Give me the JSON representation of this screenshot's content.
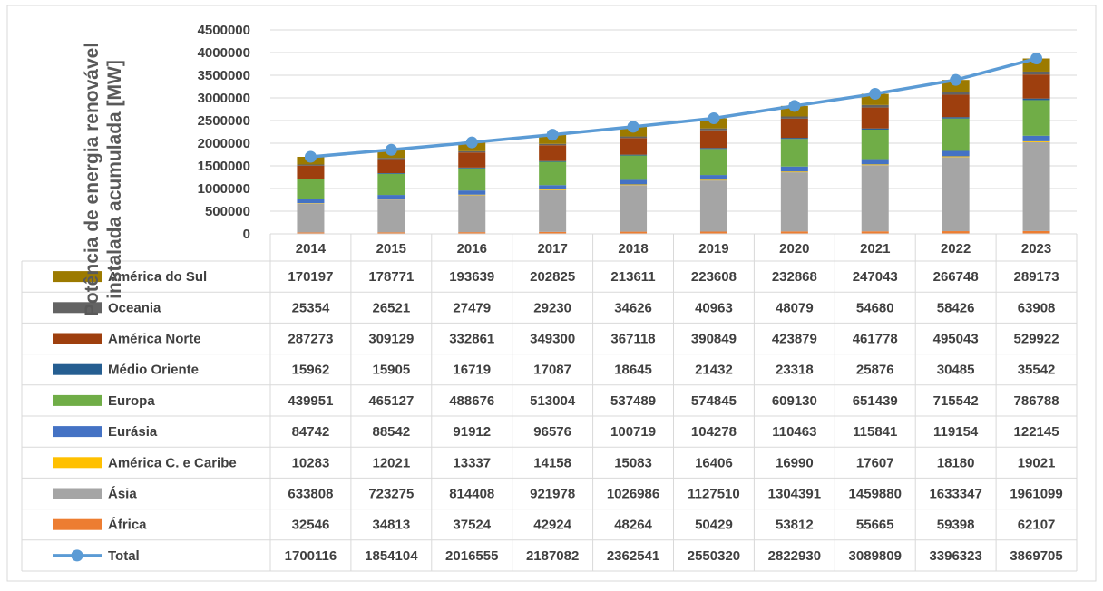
{
  "chart_data": {
    "type": "bar",
    "stacked": true,
    "title": "",
    "xlabel": "",
    "ylabel": "Potência de energia renovável instalada acumulada [MW]",
    "ylabel_lines": [
      "Potência de energia renovável",
      "instalada acumulada [MW]"
    ],
    "ylim": [
      0,
      4500000
    ],
    "yticks": [
      0,
      500000,
      1000000,
      1500000,
      2000000,
      2500000,
      3000000,
      3500000,
      4000000,
      4500000
    ],
    "grid": true,
    "legend": "data table",
    "categories": [
      "2014",
      "2015",
      "2016",
      "2017",
      "2018",
      "2019",
      "2020",
      "2021",
      "2022",
      "2023"
    ],
    "series": [
      {
        "name": "América do Sul",
        "color": "#9c7a00",
        "values": [
          170197,
          178771,
          193639,
          202825,
          213611,
          223608,
          232868,
          247043,
          266748,
          289173
        ]
      },
      {
        "name": "Oceania",
        "color": "#636363",
        "values": [
          25354,
          26521,
          27479,
          29230,
          34626,
          40963,
          48079,
          54680,
          58426,
          63908
        ]
      },
      {
        "name": "América Norte",
        "color": "#9e3f0e",
        "values": [
          287273,
          309129,
          332861,
          349300,
          367118,
          390849,
          423879,
          461778,
          495043,
          529922
        ]
      },
      {
        "name": "Médio Oriente",
        "color": "#255e91",
        "values": [
          15962,
          15905,
          16719,
          17087,
          18645,
          21432,
          23318,
          25876,
          30485,
          35542
        ]
      },
      {
        "name": "Europa",
        "color": "#70ad47",
        "values": [
          439951,
          465127,
          488676,
          513004,
          537489,
          574845,
          609130,
          651439,
          715542,
          786788
        ]
      },
      {
        "name": "Eurásia",
        "color": "#4472c4",
        "values": [
          84742,
          88542,
          91912,
          96576,
          100719,
          104278,
          110463,
          115841,
          119154,
          122145
        ]
      },
      {
        "name": "América C. e Caribe",
        "color": "#ffc000",
        "values": [
          10283,
          12021,
          13337,
          14158,
          15083,
          16406,
          16990,
          17607,
          18180,
          19021
        ]
      },
      {
        "name": "Ásia",
        "color": "#a5a5a5",
        "values": [
          633808,
          723275,
          814408,
          921978,
          1026986,
          1127510,
          1304391,
          1459880,
          1633347,
          1961099
        ]
      },
      {
        "name": "África",
        "color": "#ed7d31",
        "values": [
          32546,
          34813,
          37524,
          42924,
          48264,
          50429,
          53812,
          55665,
          59398,
          62107
        ]
      }
    ],
    "line_series": {
      "name": "Total",
      "type": "line",
      "color": "#5b9bd5",
      "values": [
        1700116,
        1854104,
        2016555,
        2187082,
        2362541,
        2550320,
        2822930,
        3089809,
        3396323,
        3869705
      ]
    }
  }
}
